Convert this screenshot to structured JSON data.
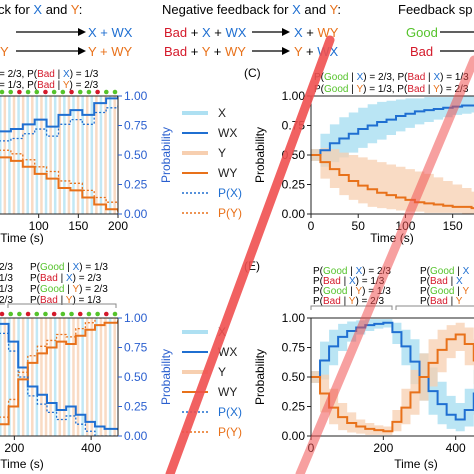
{
  "colors": {
    "x_blue": "#1f6fd1",
    "x_fill": "#aee0f2",
    "y_orange": "#e8711a",
    "y_fill": "#f7cfb0",
    "good_green": "#55c32b",
    "bad_red": "#d4192a",
    "axis_blue": "#2a5fcf",
    "watermark": "#f05050"
  },
  "header": {
    "fb_left_title": [
      "ck for ",
      "X",
      " and ",
      "Y",
      ":"
    ],
    "fb_left_row1": [
      "",
      "",
      "X + WX"
    ],
    "fb_left_row2": [
      "Y",
      "",
      "Y + WY"
    ],
    "neg_title": [
      "Negative feedback for ",
      "X",
      " and ",
      "Y",
      ":"
    ],
    "neg_row1": [
      "Bad",
      " + ",
      "X",
      " + ",
      "WX",
      "X",
      " + ",
      "WY"
    ],
    "neg_row2": [
      "Bad",
      " + ",
      "Y",
      " + ",
      "WY",
      "Y",
      " + ",
      "WX"
    ],
    "fs_title": "Feedback sp",
    "fs_good": "Good",
    "fs_bad": "Bad"
  },
  "panel_labels": {
    "c": "(C)",
    "e": "(E)"
  },
  "legend": {
    "items": [
      "X",
      "WX",
      "Y",
      "WY",
      "P(X)",
      "P(Y)"
    ]
  },
  "annotations": {
    "tl_1": [
      "",
      "",
      "",
      " = 2/3, P(",
      "Bad",
      " | ",
      "X",
      ") = 1/3"
    ],
    "tl_2": [
      "",
      "",
      "",
      " = 1/3, P(",
      "Bad",
      " | ",
      "Y",
      ") = 2/3"
    ],
    "c_1": [
      "P(",
      "Good",
      " | ",
      "X",
      ") = 2/3, P(",
      "Bad",
      " | ",
      "X",
      ") = 1/3"
    ],
    "c_2": [
      "P(",
      "Good",
      " | ",
      "Y",
      ") = 1/3, P(",
      "Bad",
      " | ",
      "Y",
      ") = 2/3"
    ],
    "bl_left": [
      "2/3",
      "1/3",
      "1/3",
      "2/3"
    ],
    "bl_right": [
      [
        "P(",
        "Good",
        " | ",
        "X",
        ") = 1/3"
      ],
      [
        "P(",
        "Bad",
        " | ",
        "X",
        ") = 2/3"
      ],
      [
        "P(",
        "Good",
        " | ",
        "Y",
        ") = 2/3"
      ],
      [
        "P(",
        "Bad",
        " | ",
        "Y",
        ") = 1/3"
      ]
    ],
    "e_left": [
      [
        "P(",
        "Good",
        " | ",
        "X",
        ") = 2/3"
      ],
      [
        "P(",
        "Bad",
        " | ",
        "X",
        ") = 1/3"
      ],
      [
        "P(",
        "Good",
        " | ",
        "Y",
        ") = 1/3"
      ],
      [
        "P(",
        "Bad",
        " | ",
        "Y",
        ") = 2/3"
      ]
    ],
    "e_right": [
      [
        "P(",
        "Good",
        " | ",
        "X",
        ""
      ],
      [
        "P(",
        "Bad",
        " | ",
        "X",
        ""
      ],
      [
        "P(",
        "Good",
        " | ",
        "Y",
        ""
      ],
      [
        "P(",
        "Bad",
        " | ",
        "Y",
        ""
      ]
    ]
  },
  "chart_data": [
    {
      "id": "top-left",
      "type": "line",
      "xlabel": "Time (s)",
      "ylabel": "Probability",
      "xlim": [
        50,
        200
      ],
      "ylim": [
        0,
        1
      ],
      "xticks": [
        100,
        150,
        200
      ],
      "yticks": [
        0.0,
        0.25,
        0.5,
        0.75,
        1.0
      ],
      "x": [
        50,
        65,
        80,
        95,
        110,
        125,
        140,
        155,
        170,
        185,
        200
      ],
      "series": [
        {
          "name": "WX",
          "values": [
            0.7,
            0.72,
            0.76,
            0.8,
            0.74,
            0.84,
            0.88,
            0.84,
            0.94,
            0.98,
            1.0
          ]
        },
        {
          "name": "WY",
          "values": [
            0.48,
            0.45,
            0.4,
            0.34,
            0.3,
            0.22,
            0.2,
            0.14,
            0.08,
            0.04,
            0.02
          ]
        }
      ]
    },
    {
      "id": "C",
      "type": "line",
      "xlabel": "Time (s)",
      "ylabel": "Probability",
      "xlim": [
        0,
        180
      ],
      "ylim": [
        0,
        1
      ],
      "xticks": [
        0,
        50,
        100,
        150
      ],
      "yticks": [
        0.0,
        0.25,
        0.5,
        0.75,
        1.0
      ],
      "x": [
        0,
        10,
        20,
        30,
        40,
        50,
        60,
        70,
        80,
        90,
        100,
        110,
        120,
        130,
        140,
        150,
        160,
        170,
        180
      ],
      "series": [
        {
          "name": "WX",
          "values": [
            0.5,
            0.54,
            0.6,
            0.64,
            0.68,
            0.72,
            0.75,
            0.78,
            0.8,
            0.83,
            0.85,
            0.87,
            0.88,
            0.89,
            0.9,
            0.91,
            0.92,
            0.92,
            0.93
          ],
          "band_lo": [
            0.45,
            0.4,
            0.44,
            0.48,
            0.52,
            0.56,
            0.6,
            0.63,
            0.67,
            0.7,
            0.73,
            0.76,
            0.78,
            0.8,
            0.82,
            0.84,
            0.85,
            0.86,
            0.87
          ],
          "band_hi": [
            0.55,
            0.68,
            0.76,
            0.82,
            0.86,
            0.9,
            0.93,
            0.95,
            0.96,
            0.97,
            0.98,
            0.98,
            0.99,
            0.99,
            0.99,
            0.99,
            1.0,
            1.0,
            1.0
          ]
        },
        {
          "name": "WY",
          "values": [
            0.5,
            0.44,
            0.38,
            0.33,
            0.28,
            0.24,
            0.21,
            0.18,
            0.16,
            0.14,
            0.12,
            0.1,
            0.09,
            0.08,
            0.07,
            0.06,
            0.06,
            0.05,
            0.05
          ],
          "band_lo": [
            0.45,
            0.3,
            0.22,
            0.16,
            0.12,
            0.09,
            0.06,
            0.05,
            0.04,
            0.03,
            0.02,
            0.02,
            0.01,
            0.01,
            0.01,
            0.01,
            0.0,
            0.0,
            0.0
          ],
          "band_hi": [
            0.55,
            0.56,
            0.55,
            0.52,
            0.5,
            0.48,
            0.46,
            0.44,
            0.42,
            0.4,
            0.38,
            0.36,
            0.34,
            0.31,
            0.28,
            0.25,
            0.22,
            0.19,
            0.16
          ]
        }
      ]
    },
    {
      "id": "bottom-left",
      "type": "line",
      "xlabel": "Time (s)",
      "ylabel": "Probability",
      "xlim": [
        160,
        470
      ],
      "ylim": [
        0,
        1
      ],
      "xticks": [
        200,
        400
      ],
      "yticks": [
        0.0,
        0.25,
        0.5,
        0.75,
        1.0
      ],
      "x": [
        160,
        185,
        210,
        235,
        260,
        285,
        310,
        335,
        360,
        385,
        410,
        435,
        470
      ],
      "series": [
        {
          "name": "WX",
          "values": [
            0.95,
            0.8,
            0.58,
            0.42,
            0.35,
            0.28,
            0.22,
            0.25,
            0.18,
            0.12,
            0.08,
            0.06,
            0.05
          ]
        },
        {
          "name": "WY",
          "values": [
            0.1,
            0.25,
            0.48,
            0.62,
            0.7,
            0.75,
            0.8,
            0.78,
            0.85,
            0.9,
            0.94,
            0.96,
            0.98
          ]
        }
      ]
    },
    {
      "id": "E",
      "type": "line",
      "xlabel": "Time (s)",
      "ylabel": "Probability",
      "xlim": [
        0,
        470
      ],
      "ylim": [
        0,
        1
      ],
      "xticks": [
        0,
        200,
        400
      ],
      "yticks": [
        0.0,
        0.25,
        0.5,
        0.75,
        1.0
      ],
      "x": [
        0,
        25,
        50,
        75,
        100,
        125,
        150,
        175,
        200,
        225,
        250,
        275,
        300,
        325,
        350,
        375,
        400,
        425,
        450,
        470
      ],
      "series": [
        {
          "name": "WX",
          "values": [
            0.5,
            0.64,
            0.76,
            0.84,
            0.89,
            0.92,
            0.94,
            0.95,
            0.96,
            0.88,
            0.76,
            0.63,
            0.5,
            0.38,
            0.27,
            0.18,
            0.14,
            0.22,
            0.36,
            0.5
          ],
          "band_lo": [
            0.45,
            0.48,
            0.6,
            0.72,
            0.8,
            0.86,
            0.89,
            0.91,
            0.92,
            0.78,
            0.6,
            0.44,
            0.3,
            0.18,
            0.1,
            0.06,
            0.04,
            0.08,
            0.18,
            0.3
          ],
          "band_hi": [
            0.55,
            0.8,
            0.9,
            0.95,
            0.97,
            0.98,
            0.99,
            0.99,
            0.99,
            0.96,
            0.9,
            0.82,
            0.7,
            0.58,
            0.46,
            0.34,
            0.28,
            0.4,
            0.56,
            0.7
          ]
        },
        {
          "name": "WY",
          "values": [
            0.5,
            0.36,
            0.24,
            0.16,
            0.11,
            0.08,
            0.06,
            0.05,
            0.04,
            0.12,
            0.24,
            0.37,
            0.5,
            0.62,
            0.73,
            0.82,
            0.86,
            0.78,
            0.64,
            0.5
          ],
          "band_lo": [
            0.45,
            0.2,
            0.1,
            0.05,
            0.03,
            0.02,
            0.01,
            0.01,
            0.01,
            0.04,
            0.1,
            0.18,
            0.3,
            0.42,
            0.54,
            0.66,
            0.72,
            0.6,
            0.44,
            0.3
          ],
          "band_hi": [
            0.55,
            0.52,
            0.4,
            0.28,
            0.2,
            0.14,
            0.11,
            0.09,
            0.08,
            0.22,
            0.4,
            0.56,
            0.7,
            0.82,
            0.9,
            0.94,
            0.96,
            0.92,
            0.82,
            0.7
          ]
        }
      ]
    }
  ]
}
